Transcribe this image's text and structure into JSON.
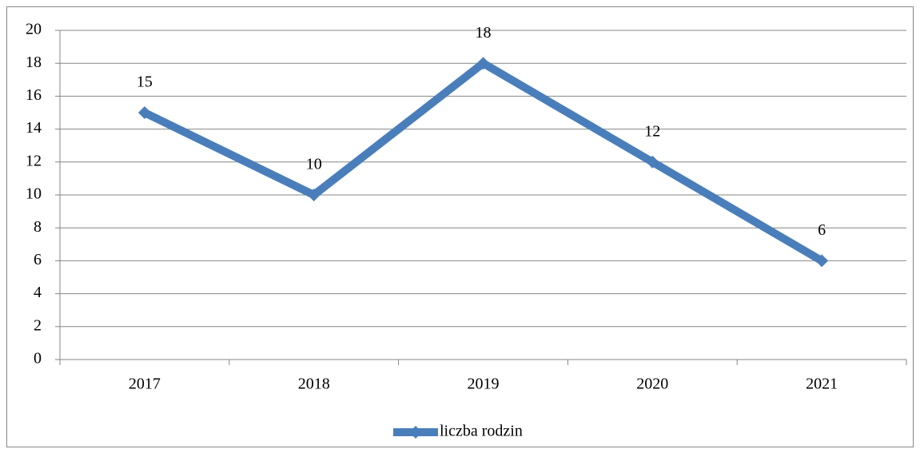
{
  "chart_data": {
    "type": "line",
    "categories": [
      "2017",
      "2018",
      "2019",
      "2020",
      "2021"
    ],
    "series": [
      {
        "name": "liczba rodzin",
        "color": "#4a7ebb",
        "values": [
          15,
          10,
          18,
          12,
          6
        ]
      }
    ],
    "ylim": [
      0,
      20
    ],
    "yticks": [
      0,
      2,
      4,
      6,
      8,
      10,
      12,
      14,
      16,
      18,
      20
    ],
    "grid": true,
    "legend": "bottom",
    "data_labels": true
  }
}
